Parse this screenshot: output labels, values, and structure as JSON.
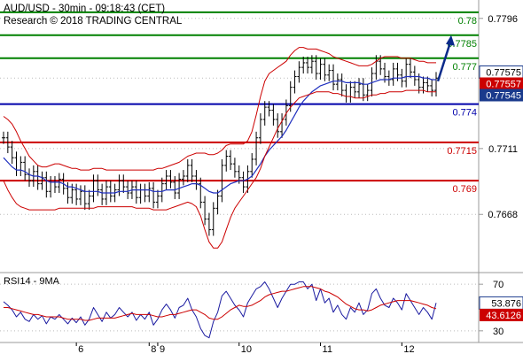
{
  "header": {
    "title": "AUD/USD - 30min - 09:18:43 (CET)",
    "copyright": "Research © 2018 TRADING CENTRAL"
  },
  "colors": {
    "bg": "#ffffff",
    "price": "#000000",
    "ma_blue": "#1f2fbf",
    "bollinger": "#cc0000",
    "resistance": "#008000",
    "support": "#cc0000",
    "pivot": "#0000aa",
    "arrow": "#0a2a8a",
    "rsi": "#1a1aa0",
    "rsi_ma": "#cc0000",
    "current_badge": "#1a3a8c",
    "prev_badge": "#cc0000"
  },
  "chart_data": [
    {
      "type": "line",
      "panel": "price",
      "ylim": [
        0.763,
        0.7808
      ],
      "y_ticks": [
        "0.7796",
        "0.7757",
        "0.7711",
        "0.7668"
      ],
      "levels": [
        {
          "label": "0.78",
          "value": 0.78,
          "kind": "resistance"
        },
        {
          "label": "0.7785",
          "value": 0.7785,
          "kind": "resistance"
        },
        {
          "label": "0.777",
          "value": 0.777,
          "kind": "resistance"
        },
        {
          "label": "0.774",
          "value": 0.774,
          "kind": "pivot"
        },
        {
          "label": "0.7715",
          "value": 0.7715,
          "kind": "support"
        },
        {
          "label": "0.769",
          "value": 0.769,
          "kind": "support"
        }
      ],
      "price_badges": [
        {
          "label": "0.77575",
          "value": 0.77575,
          "kind": "current"
        },
        {
          "label": "0.77557",
          "value": 0.77557,
          "kind": "prev"
        },
        {
          "label": "0.77545",
          "value": 0.77545,
          "kind": "current"
        }
      ],
      "series": [
        {
          "kind": "close",
          "values": [
            0.7718,
            0.7712,
            0.7705,
            0.7697,
            0.7702,
            0.7694,
            0.769,
            0.7696,
            0.7688,
            0.7692,
            0.7683,
            0.7689,
            0.7686,
            0.7691,
            0.7685,
            0.7679,
            0.7684,
            0.7678,
            0.7683,
            0.7675,
            0.768,
            0.769,
            0.7684,
            0.7678,
            0.7686,
            0.768,
            0.7684,
            0.769,
            0.7686,
            0.7682,
            0.7686,
            0.7679,
            0.7684,
            0.768,
            0.7685,
            0.7676,
            0.768,
            0.7688,
            0.7693,
            0.7689,
            0.7682,
            0.7691,
            0.7693,
            0.77,
            0.7693,
            0.7688,
            0.7676,
            0.7665,
            0.7658,
            0.7672,
            0.768,
            0.77,
            0.7706,
            0.7701,
            0.7696,
            0.7692,
            0.7686,
            0.7696,
            0.7704,
            0.7718,
            0.773,
            0.7738,
            0.7736,
            0.773,
            0.7722,
            0.773,
            0.7739,
            0.7751,
            0.7758,
            0.7764,
            0.7767,
            0.7764,
            0.7768,
            0.776,
            0.7766,
            0.7759,
            0.7762,
            0.7753,
            0.7756,
            0.7749,
            0.7745,
            0.7751,
            0.7748,
            0.7753,
            0.7746,
            0.7749,
            0.776,
            0.7768,
            0.7763,
            0.7758,
            0.7756,
            0.7763,
            0.7759,
            0.7755,
            0.7766,
            0.7761,
            0.7756,
            0.7751,
            0.7754,
            0.7752,
            0.7749,
            0.7757
          ]
        },
        {
          "kind": "ma",
          "values": [
            0.7705,
            0.7702,
            0.7699,
            0.7697,
            0.7697,
            0.7696,
            0.7694,
            0.7693,
            0.7693,
            0.7692,
            0.769,
            0.7689,
            0.7689,
            0.7689,
            0.7688,
            0.7686,
            0.7686,
            0.7685,
            0.7684,
            0.7683,
            0.7683,
            0.7683,
            0.7683,
            0.7682,
            0.7682,
            0.7682,
            0.7682,
            0.7683,
            0.7683,
            0.7683,
            0.7684,
            0.7684,
            0.7684,
            0.7684,
            0.7684,
            0.7683,
            0.7683,
            0.7683,
            0.7684,
            0.7684,
            0.7684,
            0.7685,
            0.7686,
            0.7687,
            0.7688,
            0.7688,
            0.7687,
            0.7685,
            0.7683,
            0.7682,
            0.7682,
            0.7684,
            0.7686,
            0.7688,
            0.7689,
            0.769,
            0.769,
            0.7691,
            0.7693,
            0.7697,
            0.7701,
            0.7706,
            0.771,
            0.7713,
            0.7716,
            0.7719,
            0.7723,
            0.7728,
            0.7733,
            0.7738,
            0.7742,
            0.7745,
            0.7748,
            0.775,
            0.7752,
            0.7753,
            0.7754,
            0.7755,
            0.7755,
            0.7755,
            0.7754,
            0.7754,
            0.7754,
            0.7754,
            0.7753,
            0.7753,
            0.7754,
            0.7755,
            0.7756,
            0.7756,
            0.7756,
            0.7757,
            0.7757,
            0.7757,
            0.7758,
            0.7758,
            0.7758,
            0.7758,
            0.7757,
            0.7757,
            0.7756,
            0.7756
          ]
        },
        {
          "kind": "bollinger-upper",
          "values": [
            0.7732,
            0.773,
            0.7727,
            0.7722,
            0.7716,
            0.7711,
            0.7706,
            0.7703,
            0.77,
            0.7699,
            0.7699,
            0.77,
            0.7701,
            0.7701,
            0.77,
            0.7699,
            0.7698,
            0.7698,
            0.7697,
            0.7697,
            0.7697,
            0.7698,
            0.7698,
            0.7698,
            0.7697,
            0.7697,
            0.7697,
            0.7697,
            0.7697,
            0.7697,
            0.7697,
            0.7697,
            0.7697,
            0.7697,
            0.7697,
            0.7697,
            0.7698,
            0.7698,
            0.7699,
            0.77,
            0.7701,
            0.7702,
            0.7704,
            0.7706,
            0.7707,
            0.7708,
            0.7708,
            0.7708,
            0.7707,
            0.7707,
            0.7708,
            0.771,
            0.7713,
            0.7714,
            0.7714,
            0.7714,
            0.7714,
            0.7716,
            0.7722,
            0.7733,
            0.7745,
            0.7755,
            0.776,
            0.7762,
            0.7764,
            0.7766,
            0.7768,
            0.7772,
            0.7775,
            0.7777,
            0.7777,
            0.7776,
            0.7776,
            0.7776,
            0.7775,
            0.7774,
            0.7773,
            0.7771,
            0.777,
            0.7769,
            0.7768,
            0.7767,
            0.7766,
            0.7765,
            0.7765,
            0.7765,
            0.7766,
            0.7768,
            0.777,
            0.7771,
            0.7771,
            0.7771,
            0.7771,
            0.777,
            0.777,
            0.777,
            0.7769,
            0.7768,
            0.7768,
            0.7767,
            0.7767,
            0.7767
          ]
        },
        {
          "kind": "bollinger-lower",
          "values": [
            0.769,
            0.7684,
            0.7679,
            0.7675,
            0.7673,
            0.7672,
            0.7671,
            0.7671,
            0.7671,
            0.7671,
            0.7671,
            0.7671,
            0.7671,
            0.7672,
            0.7672,
            0.7672,
            0.7672,
            0.7672,
            0.7672,
            0.7672,
            0.7672,
            0.7672,
            0.7673,
            0.7673,
            0.7673,
            0.7673,
            0.7673,
            0.7673,
            0.7673,
            0.7673,
            0.7673,
            0.7672,
            0.7672,
            0.7672,
            0.7672,
            0.7671,
            0.7671,
            0.7671,
            0.7671,
            0.7672,
            0.7673,
            0.7674,
            0.7675,
            0.7676,
            0.7675,
            0.7673,
            0.7667,
            0.7658,
            0.765,
            0.7646,
            0.7646,
            0.765,
            0.7658,
            0.7666,
            0.7672,
            0.7676,
            0.768,
            0.7684,
            0.7688,
            0.7692,
            0.7698,
            0.7706,
            0.7712,
            0.7718,
            0.7724,
            0.7729,
            0.7734,
            0.7738,
            0.7741,
            0.7744,
            0.7745,
            0.7746,
            0.7747,
            0.7748,
            0.7748,
            0.7748,
            0.7748,
            0.7747,
            0.7747,
            0.7746,
            0.7745,
            0.7745,
            0.7744,
            0.7744,
            0.7744,
            0.7745,
            0.7746,
            0.7746,
            0.7747,
            0.7747,
            0.7748,
            0.7748,
            0.7748,
            0.7748,
            0.7749,
            0.7749,
            0.7749,
            0.7749,
            0.7749,
            0.7748,
            0.7748,
            0.7748
          ]
        }
      ],
      "forecast_arrow": {
        "from": 0.7755,
        "to": 0.7785
      }
    },
    {
      "type": "line",
      "panel": "rsi",
      "title": "RSI14 - 9MA",
      "ylim": [
        20,
        80
      ],
      "y_ticks": [
        "70",
        "30"
      ],
      "x_tick_labels": [
        "6",
        "8",
        "9",
        "10",
        "11",
        "12"
      ],
      "rsi_badges": [
        {
          "label": "53.876",
          "value": 53.876,
          "kind": "current"
        },
        {
          "label": "43.6126",
          "value": 43.6126,
          "kind": "prev"
        }
      ],
      "series": [
        {
          "kind": "rsi",
          "values": [
            55,
            52,
            48,
            42,
            46,
            40,
            38,
            44,
            40,
            43,
            36,
            42,
            40,
            44,
            40,
            36,
            41,
            37,
            42,
            35,
            40,
            50,
            44,
            38,
            46,
            41,
            44,
            50,
            46,
            42,
            46,
            39,
            44,
            40,
            46,
            35,
            40,
            48,
            53,
            48,
            41,
            50,
            52,
            58,
            48,
            42,
            32,
            26,
            24,
            38,
            46,
            60,
            64,
            58,
            52,
            48,
            42,
            54,
            60,
            66,
            68,
            72,
            66,
            58,
            50,
            58,
            64,
            70,
            70,
            72,
            72,
            66,
            70,
            56,
            66,
            54,
            58,
            46,
            52,
            44,
            40,
            50,
            46,
            54,
            44,
            48,
            62,
            66,
            58,
            52,
            50,
            58,
            54,
            48,
            62,
            56,
            50,
            44,
            50,
            46,
            40,
            54
          ]
        },
        {
          "kind": "rsi-ma",
          "values": [
            50,
            50,
            49,
            48,
            47,
            46,
            45,
            44,
            44,
            43,
            42,
            42,
            42,
            42,
            41,
            40,
            40,
            40,
            40,
            39,
            39,
            40,
            41,
            41,
            41,
            41,
            41,
            42,
            43,
            44,
            45,
            44,
            44,
            44,
            44,
            43,
            42,
            42,
            43,
            44,
            44,
            45,
            46,
            47,
            48,
            48,
            46,
            44,
            41,
            40,
            40,
            42,
            45,
            48,
            50,
            52,
            51,
            51,
            52,
            54,
            56,
            59,
            61,
            62,
            63,
            64,
            64,
            65,
            66,
            67,
            68,
            68,
            68,
            67,
            66,
            64,
            63,
            61,
            59,
            56,
            53,
            51,
            49,
            48,
            48,
            47,
            48,
            50,
            52,
            53,
            54,
            55,
            56,
            56,
            56,
            56,
            55,
            54,
            53,
            52,
            50,
            49
          ]
        }
      ]
    }
  ]
}
